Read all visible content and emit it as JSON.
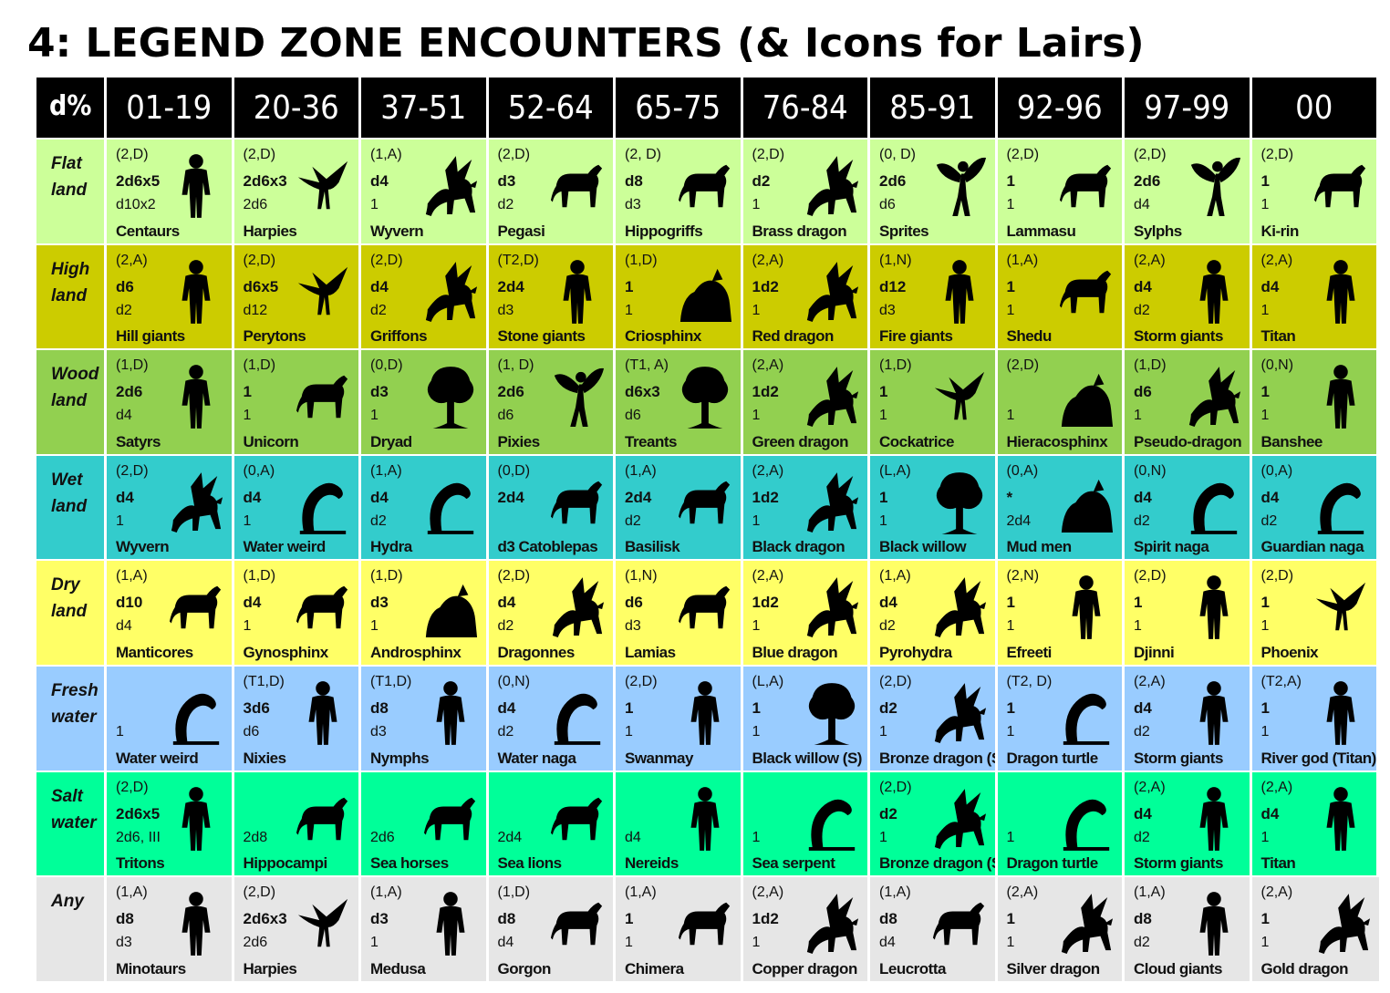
{
  "title": "4: LEGEND ZONE ENCOUNTERS (& Icons for Lairs)",
  "header": [
    "d%",
    "01-19",
    "20-36",
    "37-51",
    "52-64",
    "65-75",
    "76-84",
    "85-91",
    "92-96",
    "97-99",
    "00"
  ],
  "rows": [
    {
      "label": [
        "Flat",
        "land"
      ],
      "color": "#ccff99",
      "cells": [
        {
          "freq": "(2,D)",
          "num": "2d6x5",
          "app": "d10x2",
          "name": "Centaurs",
          "icon": "centaur-icon",
          "shape": "humanoid"
        },
        {
          "freq": "(2,D)",
          "num": "2d6x3",
          "app": "2d6",
          "name": "Harpies",
          "icon": "harpy-icon",
          "shape": "bird"
        },
        {
          "freq": "(1,A)",
          "num": "d4",
          "app": "1",
          "name": "Wyvern",
          "icon": "wyvern-icon",
          "shape": "dragon"
        },
        {
          "freq": "(2,D)",
          "num": "d3",
          "app": "d2",
          "name": "Pegasi",
          "icon": "pegasus-icon",
          "shape": "beast"
        },
        {
          "freq": "(2, D)",
          "num": "d8",
          "app": "d3",
          "name": "Hippogriffs",
          "icon": "hippogriff-icon",
          "shape": "beast"
        },
        {
          "freq": "(2,D)",
          "num": "d2",
          "app": "1",
          "name": "Brass dragon",
          "icon": "brass-dragon-icon",
          "shape": "dragon"
        },
        {
          "freq": "(0, D)",
          "num": "2d6",
          "app": "d6",
          "name": "Sprites",
          "icon": "sprite-icon",
          "shape": "fairy"
        },
        {
          "freq": "(2,D)",
          "num": "1",
          "app": "1",
          "name": "Lammasu",
          "icon": "lammasu-icon",
          "shape": "beast"
        },
        {
          "freq": "(2,D)",
          "num": "2d6",
          "app": "d4",
          "name": "Sylphs",
          "icon": "sylph-icon",
          "shape": "fairy"
        },
        {
          "freq": "(2,D)",
          "num": "1",
          "app": "1",
          "name": "Ki-rin",
          "icon": "ki-rin-icon",
          "shape": "beast"
        }
      ]
    },
    {
      "label": [
        "High",
        "land"
      ],
      "color": "#cccc00",
      "cells": [
        {
          "freq": "(2,A)",
          "num": "d6",
          "app": "d2",
          "name": "Hill giants",
          "icon": "hill-giant-icon",
          "shape": "humanoid"
        },
        {
          "freq": "(2,D)",
          "num": "d6x5",
          "app": "d12",
          "name": "Perytons",
          "icon": "peryton-icon",
          "shape": "bird"
        },
        {
          "freq": "(2,D)",
          "num": "d4",
          "app": "d2",
          "name": "Griffons",
          "icon": "griffon-icon",
          "shape": "dragon"
        },
        {
          "freq": "(T2,D)",
          "num": "2d4",
          "app": "d3",
          "name": "Stone giants",
          "icon": "stone-giant-icon",
          "shape": "humanoid"
        },
        {
          "freq": "(1,D)",
          "num": "1",
          "app": "1",
          "name": "Criosphinx",
          "icon": "criosphinx-icon",
          "shape": "mound"
        },
        {
          "freq": "(2,A)",
          "num": "1d2",
          "app": "1",
          "name": "Red dragon",
          "icon": "red-dragon-icon",
          "shape": "dragon"
        },
        {
          "freq": "(1,N)",
          "num": "d12",
          "app": "d3",
          "name": "Fire giants",
          "icon": "fire-giant-icon",
          "shape": "humanoid"
        },
        {
          "freq": "(1,A)",
          "num": "1",
          "app": "1",
          "name": "Shedu",
          "icon": "shedu-icon",
          "shape": "beast"
        },
        {
          "freq": "(2,A)",
          "num": "d4",
          "app": "d2",
          "name": "Storm giants",
          "icon": "storm-giant-icon",
          "shape": "humanoid"
        },
        {
          "freq": "(2,A)",
          "num": "d4",
          "app": "1",
          "name": "Titan",
          "icon": "titan-icon",
          "shape": "humanoid"
        }
      ]
    },
    {
      "label": [
        "Wood",
        "land"
      ],
      "color": "#92d050",
      "cells": [
        {
          "freq": "(1,D)",
          "num": "2d6",
          "app": "d4",
          "name": "Satyrs",
          "icon": "satyr-icon",
          "shape": "humanoid"
        },
        {
          "freq": "(1,D)",
          "num": "1",
          "app": "1",
          "name": "Unicorn",
          "icon": "unicorn-icon",
          "shape": "beast"
        },
        {
          "freq": "(0,D)",
          "num": "d3",
          "app": "1",
          "name": "Dryad",
          "icon": "dryad-icon",
          "shape": "tree"
        },
        {
          "freq": "(1, D)",
          "num": "2d6",
          "app": "d6",
          "name": "Pixies",
          "icon": "pixie-icon",
          "shape": "fairy"
        },
        {
          "freq": "(T1, A)",
          "num": "d6x3",
          "app": "d6",
          "name": "Treants",
          "icon": "treant-icon",
          "shape": "tree"
        },
        {
          "freq": "(2,A)",
          "num": "1d2",
          "app": "1",
          "name": "Green dragon",
          "icon": "green-dragon-icon",
          "shape": "dragon"
        },
        {
          "freq": "(1,D)",
          "num": "1",
          "app": "1",
          "name": "Cockatrice",
          "icon": "cockatrice-icon",
          "shape": "bird"
        },
        {
          "freq": "(2,D)",
          "num": "",
          "app": "1",
          "name": "Hieracosphinx",
          "icon": "hieracosphinx-icon",
          "shape": "mound"
        },
        {
          "freq": "(1,D)",
          "num": "d6",
          "app": "1",
          "name": "Pseudo-dragon",
          "icon": "pseudo-dragon-icon",
          "shape": "dragon"
        },
        {
          "freq": "(0,N)",
          "num": "1",
          "app": "1",
          "name": "Banshee",
          "icon": "banshee-icon",
          "shape": "humanoid"
        }
      ]
    },
    {
      "label": [
        "Wet",
        "land"
      ],
      "color": "#33cccc",
      "cells": [
        {
          "freq": "(2,D)",
          "num": "d4",
          "app": "1",
          "name": "Wyvern",
          "icon": "wyvern-icon",
          "shape": "dragon"
        },
        {
          "freq": "(0,A)",
          "num": "d4",
          "app": "1",
          "name": "Water weird",
          "icon": "water-weird-icon",
          "shape": "serpent"
        },
        {
          "freq": "(1,A)",
          "num": "d4",
          "app": "d2",
          "name": "Hydra",
          "icon": "hydra-icon",
          "shape": "serpent"
        },
        {
          "freq": "(0,D)",
          "num": "2d4",
          "app": "",
          "name": "d3 Catoblepas",
          "icon": "catoblepas-icon",
          "shape": "beast"
        },
        {
          "freq": "(1,A)",
          "num": "2d4",
          "app": "d2",
          "name": "Basilisk",
          "icon": "basilisk-icon",
          "shape": "beast"
        },
        {
          "freq": "(2,A)",
          "num": "1d2",
          "app": "1",
          "name": "Black dragon",
          "icon": "black-dragon-icon",
          "shape": "dragon"
        },
        {
          "freq": "(L,A)",
          "num": "1",
          "app": "1",
          "name": "Black willow",
          "icon": "black-willow-icon",
          "shape": "tree"
        },
        {
          "freq": "(0,A)",
          "num": "*",
          "app": "2d4",
          "name": "Mud men",
          "icon": "mud-men-icon",
          "shape": "mound"
        },
        {
          "freq": "(0,N)",
          "num": "d4",
          "app": "d2",
          "name": "Spirit naga",
          "icon": "spirit-naga-icon",
          "shape": "serpent"
        },
        {
          "freq": "(0,A)",
          "num": "d4",
          "app": "d2",
          "name": "Guardian naga",
          "icon": "guardian-naga-icon",
          "shape": "serpent"
        }
      ]
    },
    {
      "label": [
        "Dry",
        "land"
      ],
      "color": "#ffff66",
      "cells": [
        {
          "freq": "(1,A)",
          "num": "d10",
          "app": "d4",
          "name": "Manticores",
          "icon": "manticore-icon",
          "shape": "beast"
        },
        {
          "freq": "(1,D)",
          "num": "d4",
          "app": "1",
          "name": "Gynosphinx",
          "icon": "gynosphinx-icon",
          "shape": "beast"
        },
        {
          "freq": "(1,D)",
          "num": "d3",
          "app": "1",
          "name": "Androsphinx",
          "icon": "androsphinx-icon",
          "shape": "mound"
        },
        {
          "freq": "(2,D)",
          "num": "d4",
          "app": "d2",
          "name": "Dragonnes",
          "icon": "dragonne-icon",
          "shape": "dragon"
        },
        {
          "freq": "(1,N)",
          "num": "d6",
          "app": "d3",
          "name": "Lamias",
          "icon": "lamia-icon",
          "shape": "beast"
        },
        {
          "freq": "(2,A)",
          "num": "1d2",
          "app": "1",
          "name": "Blue dragon",
          "icon": "blue-dragon-icon",
          "shape": "dragon"
        },
        {
          "freq": "(1,A)",
          "num": "d4",
          "app": "d2",
          "name": "Pyrohydra",
          "icon": "pyrohydra-icon",
          "shape": "dragon"
        },
        {
          "freq": "(2,N)",
          "num": "1",
          "app": "1",
          "name": "Efreeti",
          "icon": "efreeti-icon",
          "shape": "humanoid"
        },
        {
          "freq": "(2,D)",
          "num": "1",
          "app": "1",
          "name": "Djinni",
          "icon": "djinni-icon",
          "shape": "humanoid"
        },
        {
          "freq": "(2,D)",
          "num": "1",
          "app": "1",
          "name": "Phoenix",
          "icon": "phoenix-icon",
          "shape": "bird"
        }
      ]
    },
    {
      "label": [
        "Fresh",
        "water"
      ],
      "color": "#99ccff",
      "cells": [
        {
          "freq": "",
          "num": "",
          "app": "1",
          "name": "Water weird",
          "icon": "water-weird-icon",
          "shape": "serpent"
        },
        {
          "freq": "(T1,D)",
          "num": "3d6",
          "app": "d6",
          "name": "Nixies",
          "icon": "nixie-icon",
          "shape": "humanoid"
        },
        {
          "freq": "(T1,D)",
          "num": "d8",
          "app": "d3",
          "name": "Nymphs",
          "icon": "nymph-icon",
          "shape": "humanoid"
        },
        {
          "freq": "(0,N)",
          "num": "d4",
          "app": "d2",
          "name": "Water naga",
          "icon": "water-naga-icon",
          "shape": "serpent"
        },
        {
          "freq": "(2,D)",
          "num": "1",
          "app": "1",
          "name": "Swanmay",
          "icon": "swanmay-icon",
          "shape": "humanoid"
        },
        {
          "freq": "(L,A)",
          "num": "1",
          "app": "1",
          "name": "Black willow (S)",
          "icon": "black-willow-icon",
          "shape": "tree"
        },
        {
          "freq": "(2,D)",
          "num": "d2",
          "app": "1",
          "name": "Bronze dragon (S)",
          "icon": "bronze-dragon-icon",
          "shape": "dragon"
        },
        {
          "freq": "(T2, D)",
          "num": "1",
          "app": "1",
          "name": "Dragon turtle",
          "icon": "dragon-turtle-icon",
          "shape": "serpent"
        },
        {
          "freq": "(2,A)",
          "num": "d4",
          "app": "d2",
          "name": "Storm giants",
          "icon": "storm-giant-icon",
          "shape": "humanoid"
        },
        {
          "freq": "(T2,A)",
          "num": "1",
          "app": "1",
          "name": "River god (Titan)",
          "icon": "river-god-icon",
          "shape": "humanoid"
        }
      ]
    },
    {
      "label": [
        "Salt",
        "water"
      ],
      "color": "#00ff99",
      "cells": [
        {
          "freq": "(2,D)",
          "num": "2d6x5",
          "app": "2d6, III",
          "name": "Tritons",
          "icon": "triton-icon",
          "shape": "humanoid"
        },
        {
          "freq": "",
          "num": "",
          "app": "2d8",
          "name": "Hippocampi",
          "icon": "hippocampus-icon",
          "shape": "beast"
        },
        {
          "freq": "",
          "num": "",
          "app": "2d6",
          "name": "Sea horses",
          "icon": "sea-horse-icon",
          "shape": "beast"
        },
        {
          "freq": "",
          "num": "",
          "app": "2d4",
          "name": "Sea lions",
          "icon": "sea-lion-icon",
          "shape": "beast"
        },
        {
          "freq": "",
          "num": "",
          "app": "d4",
          "name": "Nereids",
          "icon": "nereid-icon",
          "shape": "humanoid"
        },
        {
          "freq": "",
          "num": "",
          "app": "1",
          "name": "Sea serpent",
          "icon": "sea-serpent-icon",
          "shape": "serpent"
        },
        {
          "freq": "(2,D)",
          "num": "d2",
          "app": "1",
          "name": "Bronze dragon (S)",
          "icon": "bronze-dragon-icon",
          "shape": "dragon"
        },
        {
          "freq": "",
          "num": "",
          "app": "1",
          "name": "Dragon turtle",
          "icon": "dragon-turtle-icon",
          "shape": "serpent"
        },
        {
          "freq": "(2,A)",
          "num": "d4",
          "app": "d2",
          "name": "Storm giants",
          "icon": "storm-giant-icon",
          "shape": "humanoid"
        },
        {
          "freq": "(2,A)",
          "num": "d4",
          "app": "1",
          "name": "Titan",
          "icon": "titan-icon",
          "shape": "humanoid"
        }
      ]
    },
    {
      "label": [
        "Any",
        ""
      ],
      "color": "#e6e6e6",
      "cells": [
        {
          "freq": "(1,A)",
          "num": "d8",
          "app": "d3",
          "name": "Minotaurs",
          "icon": "minotaur-icon",
          "shape": "humanoid"
        },
        {
          "freq": "(2,D)",
          "num": "2d6x3",
          "app": "2d6",
          "name": "Harpies",
          "icon": "harpy-icon",
          "shape": "bird"
        },
        {
          "freq": "(1,A)",
          "num": "d3",
          "app": "1",
          "name": "Medusa",
          "icon": "medusa-icon",
          "shape": "humanoid"
        },
        {
          "freq": "(1,D)",
          "num": "d8",
          "app": "d4",
          "name": "Gorgon",
          "icon": "gorgon-icon",
          "shape": "beast"
        },
        {
          "freq": "(1,A)",
          "num": "1",
          "app": "1",
          "name": "Chimera",
          "icon": "chimera-icon",
          "shape": "beast"
        },
        {
          "freq": "(2,A)",
          "num": "1d2",
          "app": "1",
          "name": "Copper dragon",
          "icon": "copper-dragon-icon",
          "shape": "dragon"
        },
        {
          "freq": "(1,A)",
          "num": "d8",
          "app": "d4",
          "name": "Leucrotta",
          "icon": "leucrotta-icon",
          "shape": "beast"
        },
        {
          "freq": "(2,A)",
          "num": "1",
          "app": "1",
          "name": "Silver dragon",
          "icon": "silver-dragon-icon",
          "shape": "dragon"
        },
        {
          "freq": "(1,A)",
          "num": "d8",
          "app": "d2",
          "name": "Cloud giants",
          "icon": "cloud-giant-icon",
          "shape": "humanoid"
        },
        {
          "freq": "(2,A)",
          "num": "1",
          "app": "1",
          "name": "Gold dragon",
          "icon": "gold-dragon-icon",
          "shape": "dragon"
        }
      ]
    }
  ]
}
